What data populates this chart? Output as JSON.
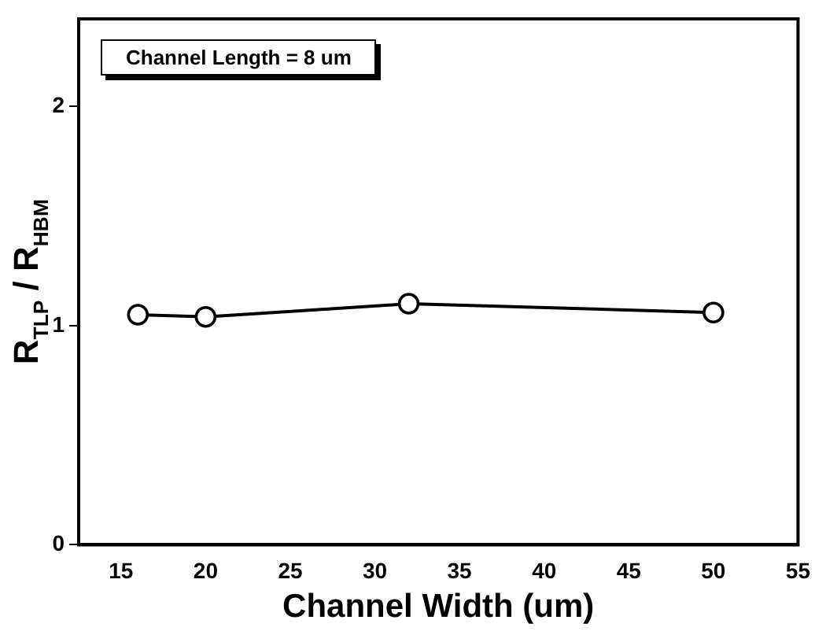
{
  "chart_data": {
    "type": "line",
    "xlabel": "Channel Width (um)",
    "ylabel": "R$_{TLP}$ / R$_{HBM}$",
    "annotations": [
      "Channel Length = 8 um"
    ],
    "x": [
      16,
      20,
      32,
      50
    ],
    "series": [
      {
        "color": "#000000",
        "values": [
          1.05,
          1.04,
          1.1,
          1.06
        ]
      }
    ],
    "xlim": [
      12.5,
      55
    ],
    "xticks": [
      15,
      20,
      25,
      30,
      35,
      40,
      45,
      50,
      55
    ],
    "ylim": [
      0,
      2.4
    ],
    "yticks": [
      0,
      1,
      2
    ],
    "grid": false,
    "legend": false,
    "marker": "circle",
    "line_style": "solid"
  }
}
